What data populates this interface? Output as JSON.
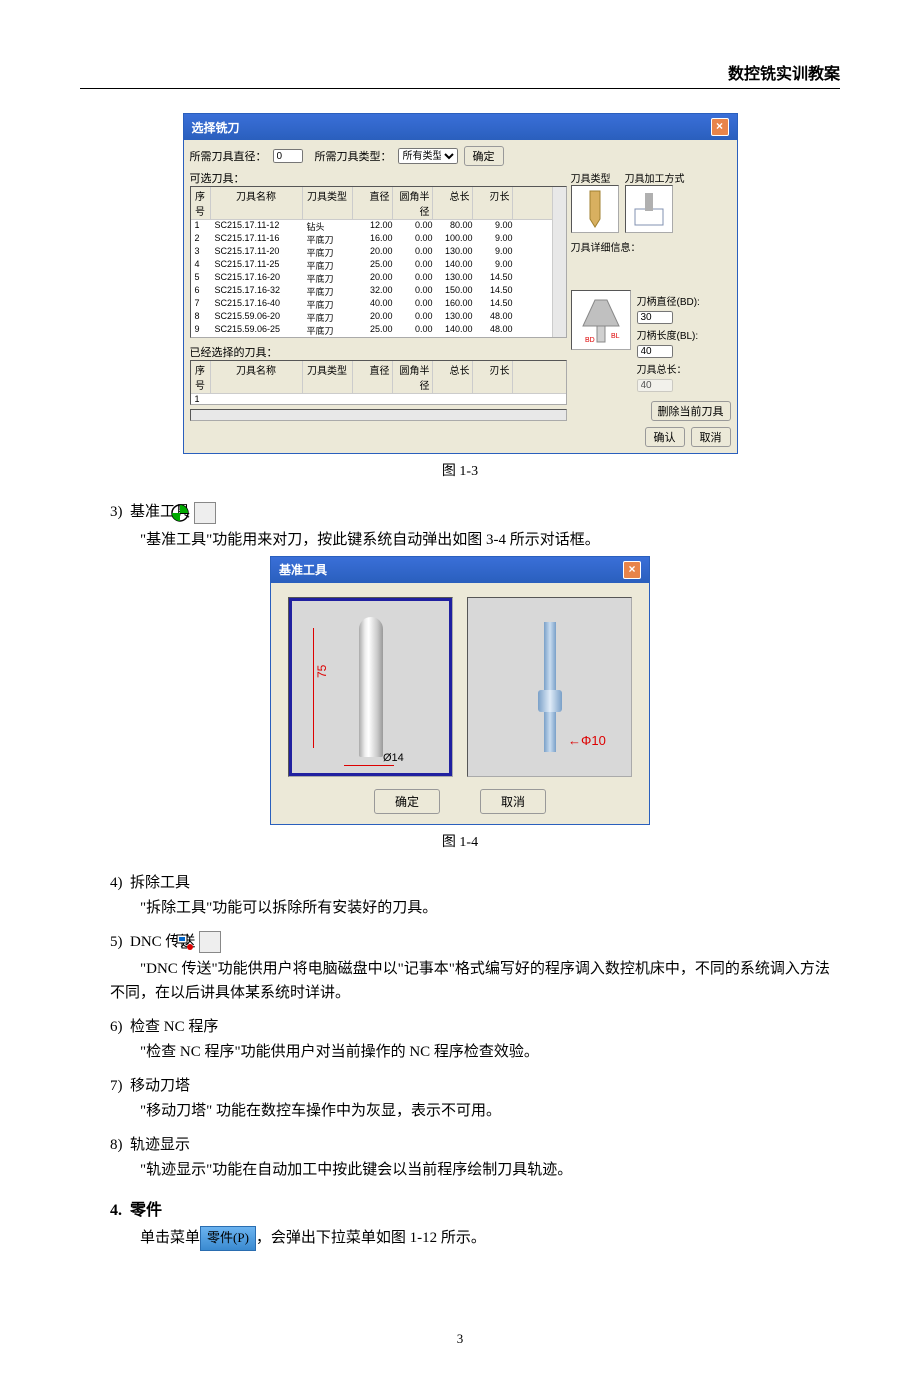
{
  "header": "数控铣实训教案",
  "pagenum": "3",
  "dialog1": {
    "title": "选择铣刀",
    "label_diameter": "所需刀具直径：",
    "diameter_val": "0",
    "label_type": "所需刀具类型：",
    "type_val": "所有类型",
    "ok": "确定",
    "label_available": "可选刀具：",
    "columns": {
      "idx": "序号",
      "name": "刀具名称",
      "type": "刀具类型",
      "dia": "直径",
      "rad": "圆角半径",
      "len": "总长",
      "cut": "刃长"
    },
    "tools": [
      {
        "idx": "1",
        "name": "SC215.17.11-12",
        "type": "钻头",
        "dia": "12.00",
        "rad": "0.00",
        "len": "80.00",
        "cut": "9.00"
      },
      {
        "idx": "2",
        "name": "SC215.17.11-16",
        "type": "平底刀",
        "dia": "16.00",
        "rad": "0.00",
        "len": "100.00",
        "cut": "9.00"
      },
      {
        "idx": "3",
        "name": "SC215.17.11-20",
        "type": "平底刀",
        "dia": "20.00",
        "rad": "0.00",
        "len": "130.00",
        "cut": "9.00"
      },
      {
        "idx": "4",
        "name": "SC215.17.11-25",
        "type": "平底刀",
        "dia": "25.00",
        "rad": "0.00",
        "len": "140.00",
        "cut": "9.00"
      },
      {
        "idx": "5",
        "name": "SC215.17.16-20",
        "type": "平底刀",
        "dia": "20.00",
        "rad": "0.00",
        "len": "130.00",
        "cut": "14.50"
      },
      {
        "idx": "6",
        "name": "SC215.17.16-32",
        "type": "平底刀",
        "dia": "32.00",
        "rad": "0.00",
        "len": "150.00",
        "cut": "14.50"
      },
      {
        "idx": "7",
        "name": "SC215.17.16-40",
        "type": "平底刀",
        "dia": "40.00",
        "rad": "0.00",
        "len": "160.00",
        "cut": "14.50"
      },
      {
        "idx": "8",
        "name": "SC215.59.06-20",
        "type": "平底刀",
        "dia": "20.00",
        "rad": "0.00",
        "len": "130.00",
        "cut": "48.00"
      },
      {
        "idx": "9",
        "name": "SC215.59.06-25",
        "type": "平底刀",
        "dia": "25.00",
        "rad": "0.00",
        "len": "140.00",
        "cut": "48.00"
      }
    ],
    "selected_label": "已经选择的刀具：",
    "selected_idx": "1",
    "right_label_tooltype": "刀具类型",
    "right_label_method": "刀具加工方式",
    "right_label_detail": "刀具详细信息：",
    "holder_d_lab": "刀柄直径(BD):",
    "holder_d_val": "30",
    "holder_l_lab": "刀柄长度(BL):",
    "holder_l_val": "40",
    "tool_total_lab": "刀具总长：",
    "tool_total_val": "40",
    "bd": "BD",
    "bl": "BL",
    "del_btn": "删除当前刀具",
    "confirm": "确认",
    "cancel": "取消"
  },
  "caption1": "图 1-3",
  "s3": {
    "num": "3)",
    "title": "基准工具"
  },
  "s3_text": "\"基准工具\"功能用来对刀，按此键系统自动弹出如图 3-4 所示对话框。",
  "dialog2": {
    "title": "基准工具",
    "dim_v": "75",
    "dim_h": "Ø14",
    "phi": "Φ10",
    "ok": "确定",
    "cancel": "取消"
  },
  "caption2": "图 1-4",
  "s4": {
    "num": "4)",
    "title": "拆除工具",
    "text": "\"拆除工具\"功能可以拆除所有安装好的刀具。"
  },
  "s5": {
    "num": "5)",
    "title": "DNC 传送",
    "text": "\"DNC 传送\"功能供用户将电脑磁盘中以\"记事本\"格式编写好的程序调入数控机床中，不同的系统调入方法不同，在以后讲具体某系统时详讲。"
  },
  "s6": {
    "num": "6)",
    "title": "检查 NC 程序",
    "text": "\"检查 NC 程序\"功能供用户对当前操作的 NC 程序检查效验。"
  },
  "s7": {
    "num": "7)",
    "title": "移动刀塔",
    "text": "\"移动刀塔\" 功能在数控车操作中为灰显，表示不可用。"
  },
  "s8": {
    "num": "8)",
    "title": "轨迹显示",
    "text": "\"轨迹显示\"功能在自动加工中按此键会以当前程序绘制刀具轨迹。"
  },
  "h4": {
    "num": "4.",
    "title": "零件"
  },
  "h4_prefix": "单击菜单",
  "menu_label": "零件(P)",
  "h4_suffix": "，会弹出下拉菜单如图 1-12 所示。"
}
